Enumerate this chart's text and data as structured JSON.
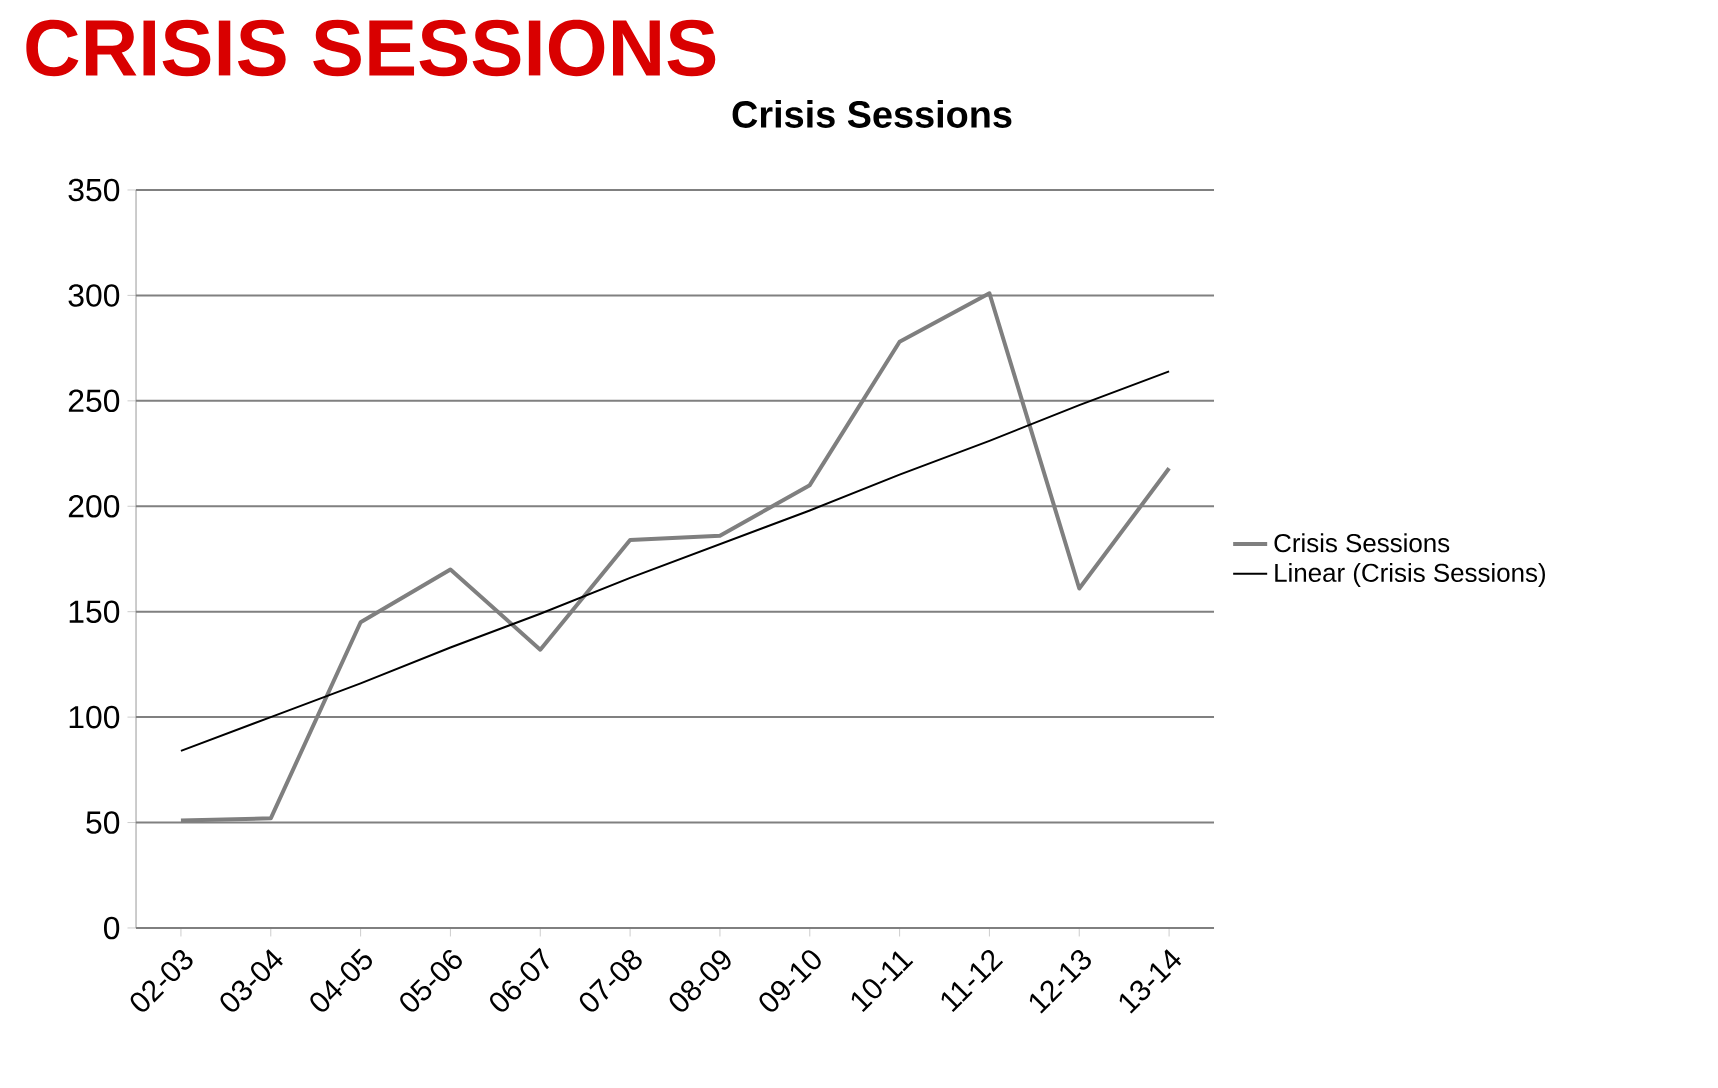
{
  "chart_data": {
    "type": "line",
    "title": "CRISIS SESSIONS",
    "subtitle": "Crisis Sessions",
    "categories": [
      "02-03",
      "03-04",
      "04-05",
      "05-06",
      "06-07",
      "07-08",
      "08-09",
      "09-10",
      "10-11",
      "11-12",
      "12-13",
      "13-14"
    ],
    "series": [
      {
        "name": "Crisis Sessions",
        "color": "#7f7f7f",
        "values": [
          51,
          52,
          145,
          170,
          132,
          184,
          186,
          210,
          278,
          301,
          161,
          218
        ]
      },
      {
        "name": "Linear (Crisis Sessions)",
        "color": "#000000",
        "values": [
          84,
          100,
          116,
          133,
          149,
          166,
          182,
          198,
          215,
          231,
          248,
          264
        ]
      }
    ],
    "ylim": [
      0,
      350
    ],
    "yticks": [
      0,
      50,
      100,
      150,
      200,
      250,
      300,
      350
    ],
    "grid": "y",
    "legend": "right",
    "marker": "none",
    "line_style": "solid"
  }
}
